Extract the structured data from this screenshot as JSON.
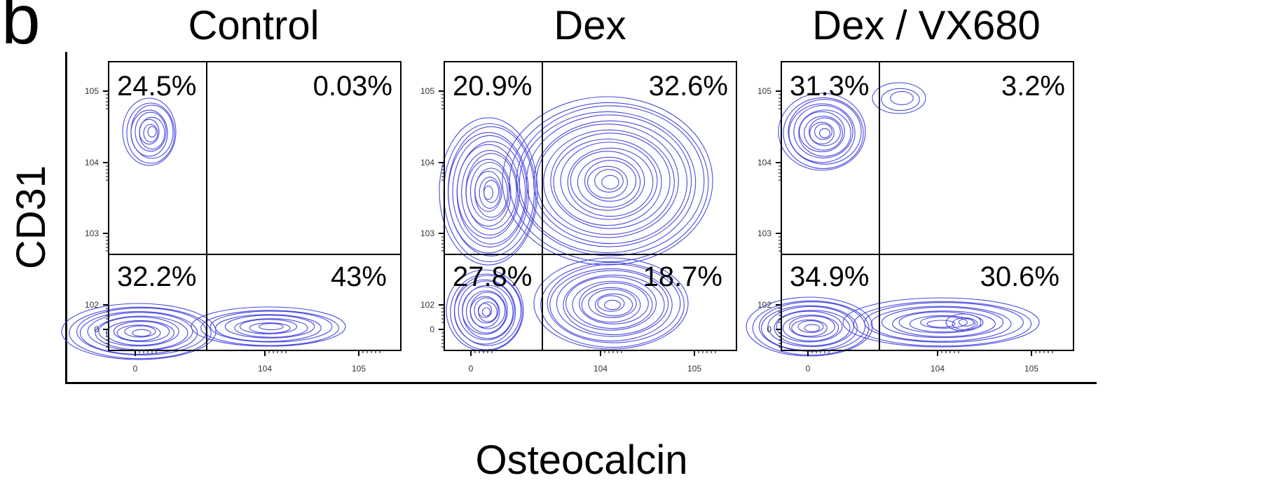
{
  "panel_letter": "b",
  "chart_data": {
    "type": "contour",
    "xlabel": "Osteocalcin",
    "ylabel": "CD31",
    "x_ticks": [
      "0",
      "10^4",
      "10^5"
    ],
    "y_ticks": [
      "10^5",
      "10^4",
      "10^3",
      "10^2",
      "0"
    ],
    "contour_color": "#4a4ae0",
    "panels": [
      {
        "title": "Control",
        "quadrants": {
          "upper_left": "24.5%",
          "upper_right": "0.03%",
          "lower_left": "32.2%",
          "lower_right": "43%"
        }
      },
      {
        "title": "Dex",
        "quadrants": {
          "upper_left": "20.9%",
          "upper_right": "32.6%",
          "lower_left": "27.8%",
          "lower_right": "18.7%"
        }
      },
      {
        "title": "Dex / VX680",
        "quadrants": {
          "upper_left": "31.3%",
          "upper_right": "3.2%",
          "lower_left": "34.9%",
          "lower_right": "30.6%"
        }
      }
    ]
  }
}
